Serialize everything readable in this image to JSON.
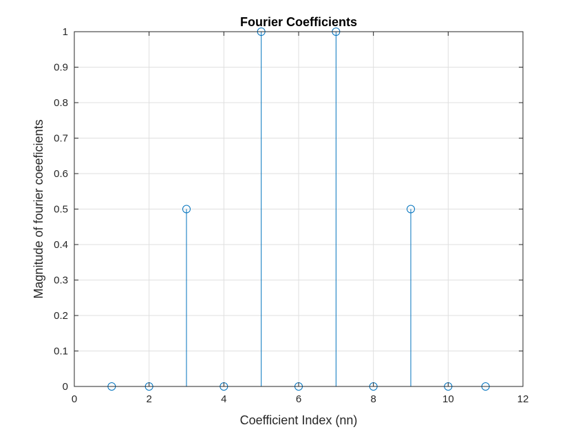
{
  "chart_data": {
    "type": "stem",
    "title": "Fourier Coefficients",
    "xlabel": "Coefficient Index (nn)",
    "ylabel": "Magnitude of fourier coeeficients",
    "xlim": [
      0,
      12
    ],
    "ylim": [
      0,
      1
    ],
    "xticks": [
      0,
      2,
      4,
      6,
      8,
      10,
      12
    ],
    "yticks": [
      0,
      0.1,
      0.2,
      0.3,
      0.4,
      0.5,
      0.6,
      0.7,
      0.8,
      0.9,
      1
    ],
    "grid": true,
    "series": [
      {
        "x": [
          1,
          2,
          3,
          4,
          5,
          6,
          7,
          8,
          9,
          10,
          11
        ],
        "values": [
          0,
          0,
          0.5,
          0,
          1,
          0,
          1,
          0,
          0.5,
          0,
          0
        ],
        "color": "#0072BD"
      }
    ]
  }
}
